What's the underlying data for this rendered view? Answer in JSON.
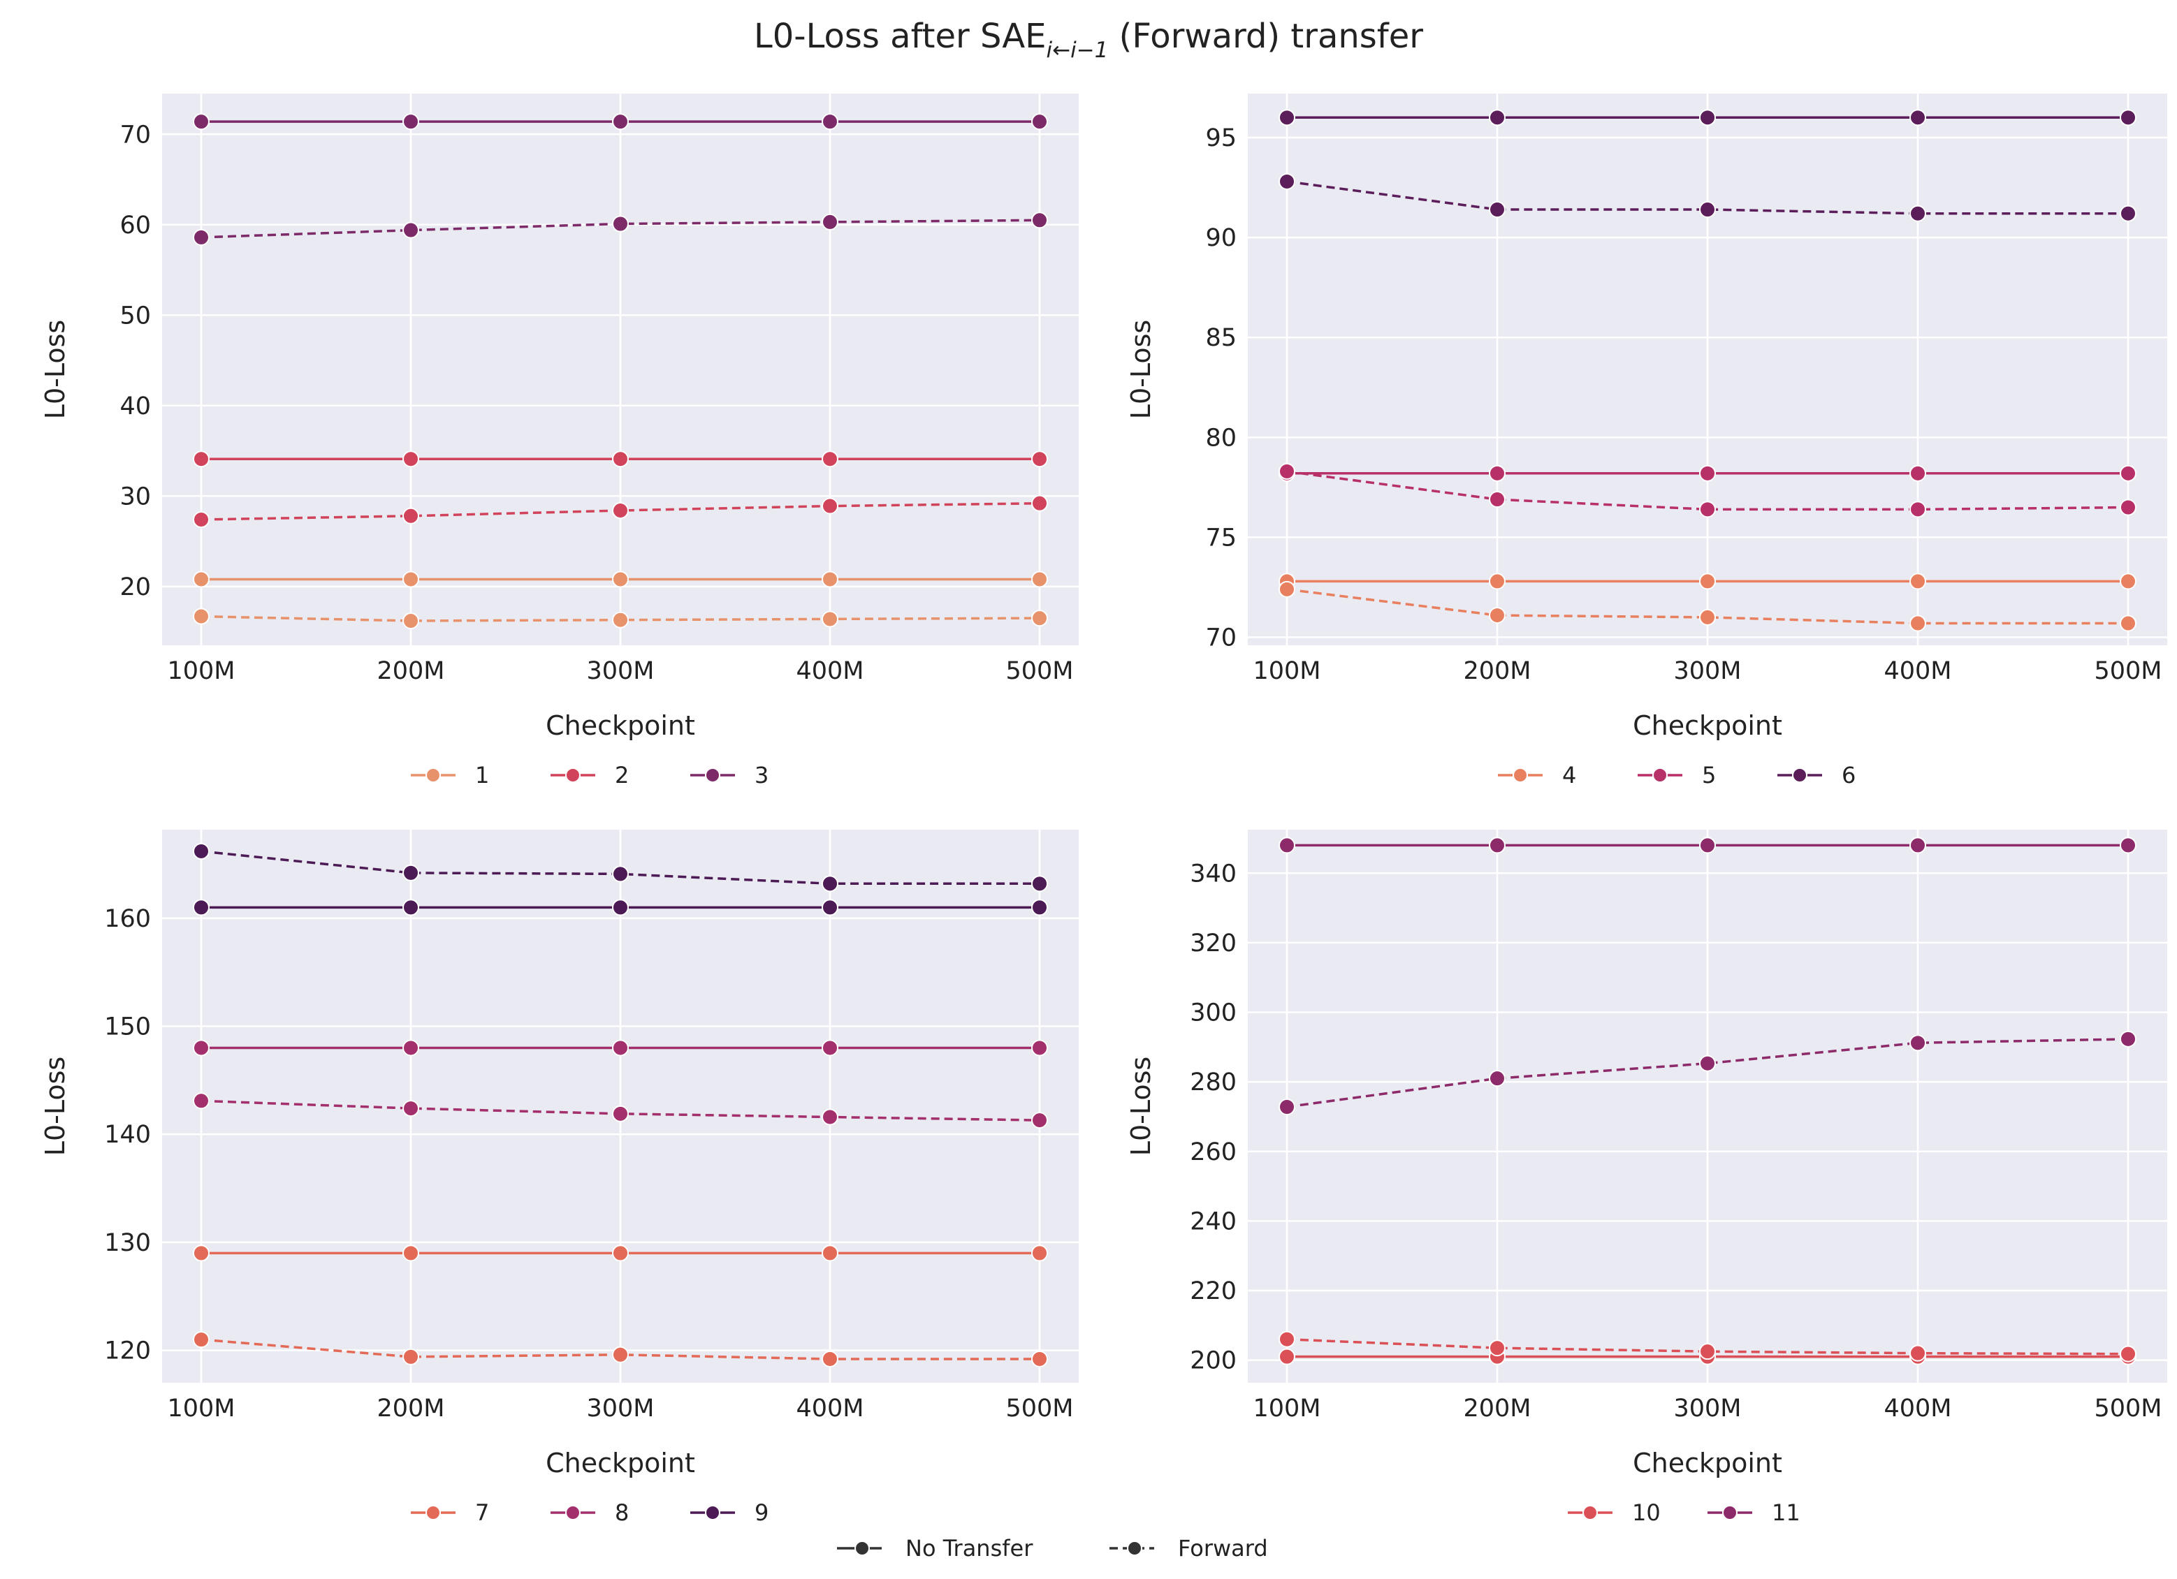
{
  "figure": {
    "title_main": "L0-Loss after SAE",
    "title_sub": "i←i−1",
    "title_tail": " (Forward) transfer"
  },
  "style_legend": [
    {
      "label": "No Transfer",
      "dash": "solid"
    },
    {
      "label": "Forward",
      "dash": "dashed"
    }
  ],
  "chart_data": [
    {
      "type": "line",
      "categories": [
        "100M",
        "200M",
        "300M",
        "400M",
        "500M"
      ],
      "xlabel": "Checkpoint",
      "ylabel": "L0-Loss",
      "ylim": [
        13.5,
        74.5
      ],
      "yticks": [
        20,
        30,
        40,
        50,
        60,
        70
      ],
      "grid": true,
      "legend_position": "below",
      "series": [
        {
          "name": "1",
          "color": "#e8926c",
          "no_transfer": [
            20.8,
            20.8,
            20.8,
            20.8,
            20.8
          ],
          "forward": [
            16.7,
            16.2,
            16.3,
            16.4,
            16.5
          ]
        },
        {
          "name": "2",
          "color": "#d1435b",
          "no_transfer": [
            34.1,
            34.1,
            34.1,
            34.1,
            34.1
          ],
          "forward": [
            27.4,
            27.8,
            28.4,
            28.9,
            29.2
          ]
        },
        {
          "name": "3",
          "color": "#7c2a68",
          "no_transfer": [
            71.4,
            71.4,
            71.4,
            71.4,
            71.4
          ],
          "forward": [
            58.6,
            59.4,
            60.1,
            60.3,
            60.5
          ]
        }
      ]
    },
    {
      "type": "line",
      "categories": [
        "100M",
        "200M",
        "300M",
        "400M",
        "500M"
      ],
      "xlabel": "Checkpoint",
      "ylabel": "L0-Loss",
      "ylim": [
        69.6,
        97.2
      ],
      "yticks": [
        70,
        75,
        80,
        85,
        90,
        95
      ],
      "grid": true,
      "legend_position": "below",
      "series": [
        {
          "name": "4",
          "color": "#e8805f",
          "no_transfer": [
            72.8,
            72.8,
            72.8,
            72.8,
            72.8
          ],
          "forward": [
            72.4,
            71.1,
            71.0,
            70.7,
            70.7
          ]
        },
        {
          "name": "5",
          "color": "#b83068",
          "no_transfer": [
            78.2,
            78.2,
            78.2,
            78.2,
            78.2
          ],
          "forward": [
            78.3,
            76.9,
            76.4,
            76.4,
            76.5
          ]
        },
        {
          "name": "6",
          "color": "#5b1e5b",
          "no_transfer": [
            96.0,
            96.0,
            96.0,
            96.0,
            96.0
          ],
          "forward": [
            92.8,
            91.4,
            91.4,
            91.2,
            91.2
          ]
        }
      ]
    },
    {
      "type": "line",
      "categories": [
        "100M",
        "200M",
        "300M",
        "400M",
        "500M"
      ],
      "xlabel": "Checkpoint",
      "ylabel": "L0-Loss",
      "ylim": [
        117.0,
        168.2
      ],
      "yticks": [
        120,
        130,
        140,
        150,
        160
      ],
      "grid": true,
      "legend_position": "below",
      "series": [
        {
          "name": "7",
          "color": "#e26a56",
          "no_transfer": [
            129.0,
            129.0,
            129.0,
            129.0,
            129.0
          ],
          "forward": [
            121.0,
            119.4,
            119.6,
            119.2,
            119.2
          ]
        },
        {
          "name": "8",
          "color": "#a3306c",
          "no_transfer": [
            148.0,
            148.0,
            148.0,
            148.0,
            148.0
          ],
          "forward": [
            143.1,
            142.4,
            141.9,
            141.6,
            141.3
          ]
        },
        {
          "name": "9",
          "color": "#4c1a55",
          "no_transfer": [
            161.0,
            161.0,
            161.0,
            161.0,
            161.0
          ],
          "forward": [
            166.2,
            164.2,
            164.1,
            163.2,
            163.2
          ]
        }
      ]
    },
    {
      "type": "line",
      "categories": [
        "100M",
        "200M",
        "300M",
        "400M",
        "500M"
      ],
      "xlabel": "Checkpoint",
      "ylabel": "L0-Loss",
      "ylim": [
        193.5,
        352.5
      ],
      "yticks": [
        200,
        220,
        240,
        260,
        280,
        300,
        320,
        340
      ],
      "grid": true,
      "legend_position": "below",
      "series": [
        {
          "name": "10",
          "color": "#db5056",
          "no_transfer": [
            201.0,
            201.0,
            201.0,
            201.0,
            201.0
          ],
          "forward": [
            206.0,
            203.5,
            202.5,
            202.0,
            201.8
          ]
        },
        {
          "name": "11",
          "color": "#8c2a6a",
          "no_transfer": [
            348.0,
            348.0,
            348.0,
            348.0,
            348.0
          ],
          "forward": [
            272.8,
            281.0,
            285.3,
            291.2,
            292.3
          ]
        }
      ]
    }
  ]
}
